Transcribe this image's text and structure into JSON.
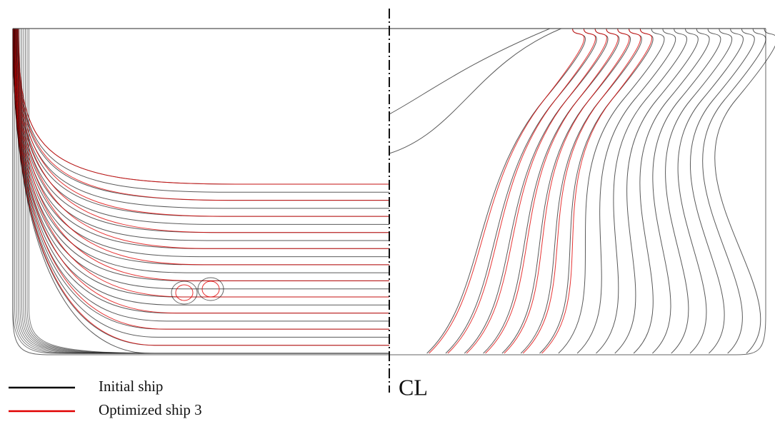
{
  "legend": {
    "items": [
      {
        "label": "Initial ship",
        "color": "#000000"
      },
      {
        "label": "Optimized ship 3",
        "color": "#e00000"
      }
    ]
  },
  "centerline": {
    "label": "CL"
  }
}
